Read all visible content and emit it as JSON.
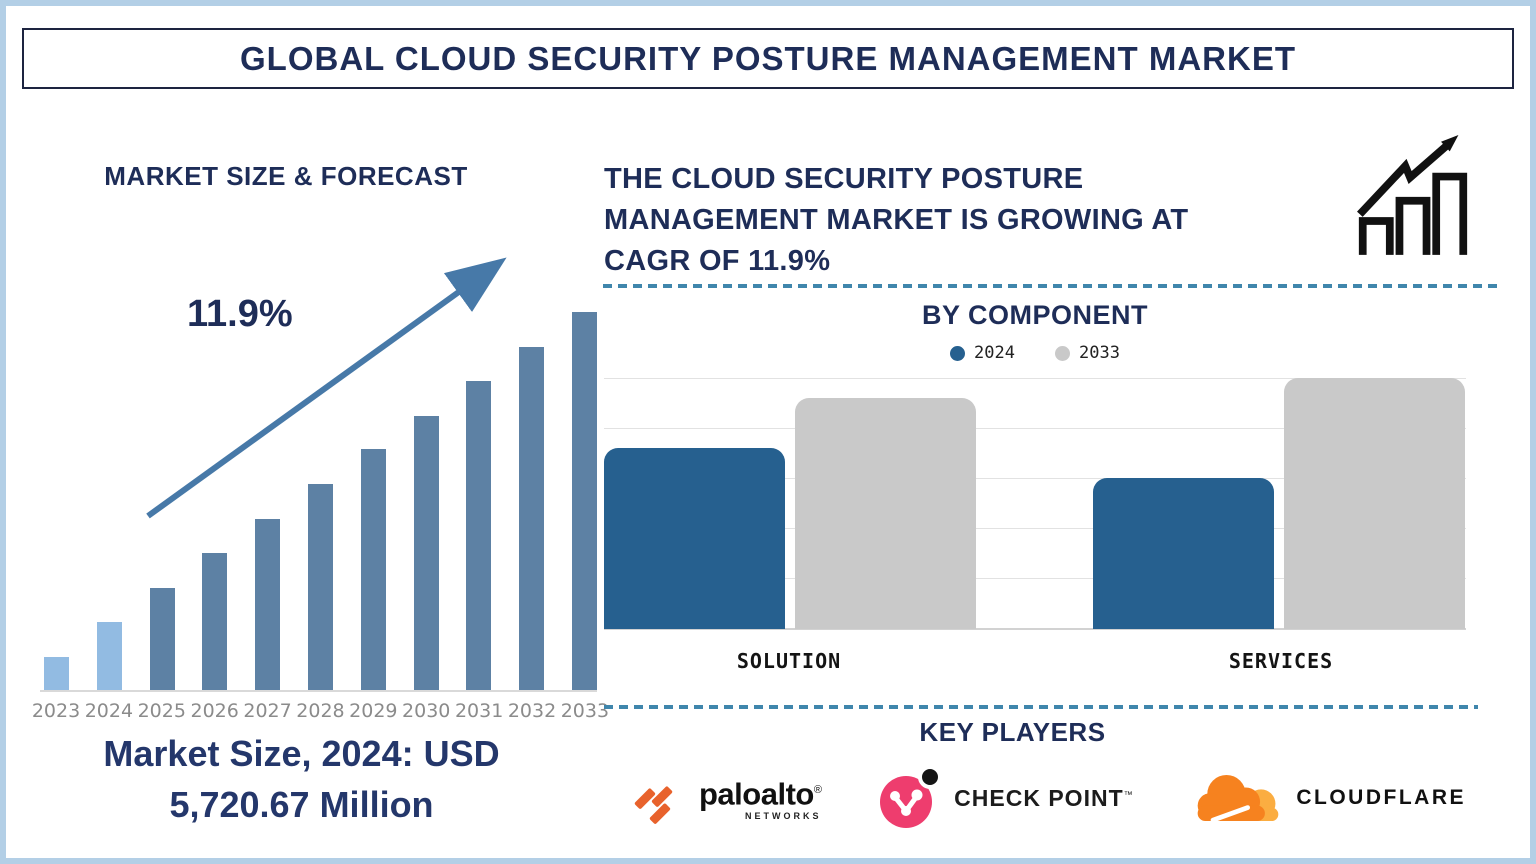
{
  "title": "GLOBAL CLOUD SECURITY POSTURE MANAGEMENT MARKET",
  "left_panel": {
    "title": "MARKET SIZE & FORECAST",
    "caption_line1": "Market Size, 2024: USD",
    "caption_line2": "5,720.67 Million"
  },
  "right_panel": {
    "headline_lines": [
      "THE CLOUD SECURITY POSTURE",
      "MANAGEMENT MARKET IS GROWING AT",
      "CAGR OF 11.9%"
    ],
    "key_players": {
      "title": "KEY PLAYERS",
      "players": [
        {
          "name": "Palo Alto Networks",
          "wordmark": "paloalto",
          "reg": "®",
          "sub": "NETWORKS"
        },
        {
          "name": "Check Point",
          "wordmark": "CHECK POINT",
          "tm": "™"
        },
        {
          "name": "Cloudflare",
          "wordmark": "CLOUDFLARE"
        }
      ]
    }
  },
  "chart_data": [
    {
      "id": "market_size_forecast",
      "type": "bar",
      "title": "MARKET SIZE & FORECAST",
      "categories": [
        "2023",
        "2024",
        "2025",
        "2026",
        "2027",
        "2028",
        "2029",
        "2030",
        "2031",
        "2032",
        "2033"
      ],
      "values_relative_height": [
        33,
        68,
        102,
        137,
        171,
        206,
        241,
        274,
        309,
        343,
        378
      ],
      "highlighted_categories": [
        "2023",
        "2024"
      ],
      "bar_color": "#5d81a4",
      "highlight_color": "#92bbe2",
      "annotation": "11.9%",
      "cagr_percent": 11.9,
      "known_point": {
        "year": "2024",
        "value_usd_million": 5720.67
      },
      "xlabel": "",
      "ylabel": "",
      "axis_values_shown": false,
      "grid": false
    },
    {
      "id": "by_component",
      "type": "bar",
      "title": "BY COMPONENT",
      "categories": [
        "SOLUTION",
        "SERVICES"
      ],
      "series": [
        {
          "name": "2024",
          "color": "#26608f",
          "values": [
            3.6,
            3.0
          ]
        },
        {
          "name": "2033",
          "color": "#c9c9c9",
          "values": [
            4.6,
            5.0
          ]
        }
      ],
      "ylim": [
        0,
        5
      ],
      "grid": true,
      "legend_position": "top",
      "axis_values_shown": false
    }
  ],
  "colors": {
    "navy_text": "#1e2d58",
    "steel_blue_bar": "#5d81a4",
    "light_blue_bar": "#92bbe2",
    "component_blue": "#26608f",
    "component_gray": "#c9c9c9",
    "dashed_divider": "#3f86ac",
    "trend_arrow": "#4779a8",
    "page_border": "#b3cfe6",
    "paloalto_orange": "#e8622c",
    "checkpoint_pink": "#ee3d6e",
    "cloudflare_orange": "#f6821f",
    "cloudflare_light_orange": "#fbad41"
  }
}
